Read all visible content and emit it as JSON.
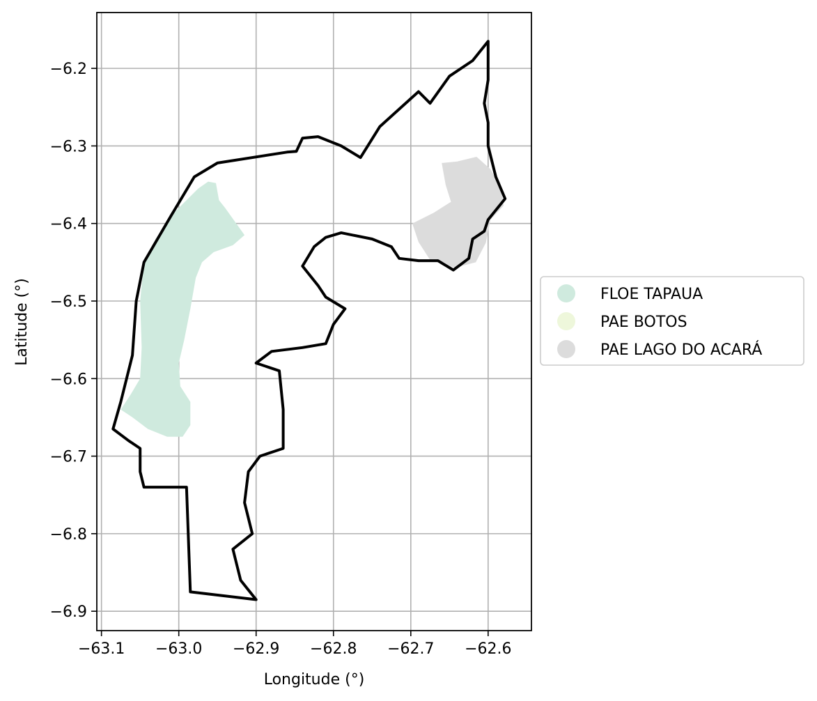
{
  "chart_data": {
    "type": "map",
    "xlabel": "Longitude (°)",
    "ylabel": "Latitude (°)",
    "xlim": [
      -63.106,
      -62.544
    ],
    "ylim": [
      -6.925,
      -6.128
    ],
    "x_ticks": [
      -63.1,
      -63.0,
      -62.9,
      -62.8,
      -62.7,
      -62.6
    ],
    "x_tick_labels": [
      "−63.1",
      "−63.0",
      "−62.9",
      "−62.8",
      "−62.7",
      "−62.6"
    ],
    "y_ticks": [
      -6.2,
      -6.3,
      -6.4,
      -6.5,
      -6.6,
      -6.7,
      -6.8,
      -6.9
    ],
    "y_tick_labels": [
      "−6.2",
      "−6.3",
      "−6.4",
      "−6.5",
      "−6.6",
      "−6.7",
      "−6.8",
      "−6.9"
    ],
    "grid": true,
    "legend_position": "right-outside",
    "legend": [
      {
        "label": "FLOE TAPAUA",
        "color": "#cfeade"
      },
      {
        "label": "PAE BOTOS",
        "color": "#eef7db"
      },
      {
        "label": "PAE LAGO DO ACARÁ",
        "color": "#dcdcdc"
      }
    ],
    "regions": [
      {
        "name": "FLOE TAPAUA",
        "color": "#cfeade",
        "coords": [
          [
            -63.075,
            -6.64
          ],
          [
            -63.062,
            -6.62
          ],
          [
            -63.05,
            -6.6
          ],
          [
            -63.048,
            -6.56
          ],
          [
            -63.05,
            -6.5
          ],
          [
            -63.045,
            -6.45
          ],
          [
            -63.03,
            -6.42
          ],
          [
            -63.01,
            -6.39
          ],
          [
            -62.99,
            -6.37
          ],
          [
            -62.975,
            -6.355
          ],
          [
            -62.962,
            -6.346
          ],
          [
            -62.952,
            -6.348
          ],
          [
            -62.948,
            -6.37
          ],
          [
            -62.94,
            -6.38
          ],
          [
            -62.93,
            -6.394
          ],
          [
            -62.915,
            -6.415
          ],
          [
            -62.93,
            -6.428
          ],
          [
            -62.955,
            -6.437
          ],
          [
            -62.97,
            -6.45
          ],
          [
            -62.978,
            -6.47
          ],
          [
            -62.985,
            -6.51
          ],
          [
            -62.993,
            -6.55
          ],
          [
            -63.0,
            -6.58
          ],
          [
            -62.998,
            -6.61
          ],
          [
            -62.985,
            -6.63
          ],
          [
            -62.985,
            -6.66
          ],
          [
            -62.995,
            -6.675
          ],
          [
            -63.015,
            -6.675
          ],
          [
            -63.04,
            -6.665
          ],
          [
            -63.06,
            -6.65
          ]
        ]
      },
      {
        "name": "PAE LAGO DO ACARÁ",
        "color": "#dcdcdc",
        "coords": [
          [
            -62.698,
            -6.4
          ],
          [
            -62.67,
            -6.386
          ],
          [
            -62.648,
            -6.372
          ],
          [
            -62.655,
            -6.35
          ],
          [
            -62.66,
            -6.322
          ],
          [
            -62.64,
            -6.32
          ],
          [
            -62.615,
            -6.314
          ],
          [
            -62.597,
            -6.33
          ],
          [
            -62.583,
            -6.355
          ],
          [
            -62.58,
            -6.377
          ],
          [
            -62.597,
            -6.395
          ],
          [
            -62.603,
            -6.425
          ],
          [
            -62.616,
            -6.45
          ],
          [
            -62.643,
            -6.457
          ],
          [
            -62.675,
            -6.447
          ],
          [
            -62.69,
            -6.424
          ]
        ]
      }
    ],
    "boundary": [
      [
        -63.045,
        -6.74
      ],
      [
        -62.99,
        -6.74
      ],
      [
        -62.985,
        -6.875
      ],
      [
        -62.9,
        -6.885
      ],
      [
        -62.92,
        -6.86
      ],
      [
        -62.93,
        -6.82
      ],
      [
        -62.905,
        -6.8
      ],
      [
        -62.915,
        -6.76
      ],
      [
        -62.91,
        -6.72
      ],
      [
        -62.895,
        -6.7
      ],
      [
        -62.865,
        -6.69
      ],
      [
        -62.865,
        -6.64
      ],
      [
        -62.87,
        -6.59
      ],
      [
        -62.9,
        -6.58
      ],
      [
        -62.88,
        -6.565
      ],
      [
        -62.84,
        -6.56
      ],
      [
        -62.81,
        -6.555
      ],
      [
        -62.8,
        -6.53
      ],
      [
        -62.785,
        -6.51
      ],
      [
        -62.81,
        -6.495
      ],
      [
        -62.82,
        -6.48
      ],
      [
        -62.84,
        -6.455
      ],
      [
        -62.825,
        -6.43
      ],
      [
        -62.81,
        -6.418
      ],
      [
        -62.79,
        -6.412
      ],
      [
        -62.775,
        -6.415
      ],
      [
        -62.75,
        -6.42
      ],
      [
        -62.725,
        -6.43
      ],
      [
        -62.715,
        -6.445
      ],
      [
        -62.69,
        -6.448
      ],
      [
        -62.665,
        -6.448
      ],
      [
        -62.645,
        -6.46
      ],
      [
        -62.625,
        -6.445
      ],
      [
        -62.62,
        -6.42
      ],
      [
        -62.605,
        -6.41
      ],
      [
        -62.6,
        -6.395
      ],
      [
        -62.578,
        -6.368
      ],
      [
        -62.59,
        -6.34
      ],
      [
        -62.6,
        -6.3
      ],
      [
        -62.6,
        -6.27
      ],
      [
        -62.605,
        -6.245
      ],
      [
        -62.6,
        -6.215
      ],
      [
        -62.6,
        -6.165
      ],
      [
        -62.62,
        -6.19
      ],
      [
        -62.65,
        -6.21
      ],
      [
        -62.675,
        -6.245
      ],
      [
        -62.69,
        -6.23
      ],
      [
        -62.74,
        -6.275
      ],
      [
        -62.765,
        -6.315
      ],
      [
        -62.79,
        -6.3
      ],
      [
        -62.82,
        -6.288
      ],
      [
        -62.84,
        -6.29
      ],
      [
        -62.848,
        -6.307
      ],
      [
        -62.86,
        -6.308
      ],
      [
        -62.95,
        -6.322
      ],
      [
        -62.98,
        -6.34
      ],
      [
        -63.01,
        -6.39
      ],
      [
        -63.045,
        -6.45
      ],
      [
        -63.055,
        -6.5
      ],
      [
        -63.06,
        -6.57
      ],
      [
        -63.075,
        -6.63
      ],
      [
        -63.085,
        -6.665
      ],
      [
        -63.065,
        -6.68
      ],
      [
        -63.05,
        -6.69
      ],
      [
        -63.05,
        -6.72
      ]
    ]
  }
}
